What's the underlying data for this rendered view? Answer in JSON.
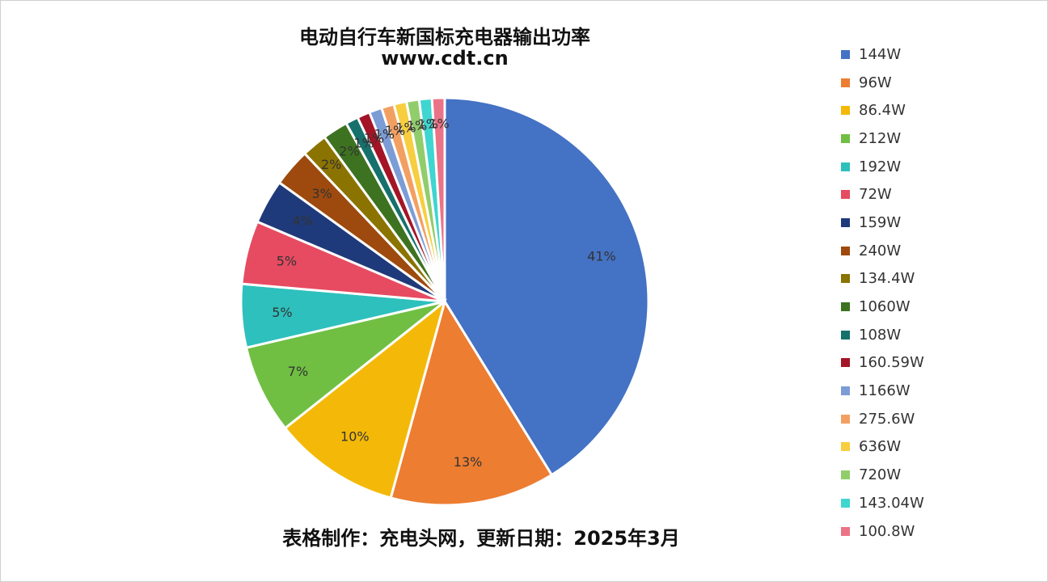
{
  "chart_data": {
    "type": "pie",
    "title": "电动自行车新国标充电器输出功率",
    "subtitle": "www.cdt.cn",
    "footer": "表格制作：充电头网，更新日期：2025年3月",
    "legend_position": "right",
    "slices": [
      {
        "name": "144W",
        "value": 41,
        "label": "41%",
        "color": "#4472C4"
      },
      {
        "name": "96W",
        "value": 13,
        "label": "13%",
        "color": "#ED7D31"
      },
      {
        "name": "86.4W",
        "value": 10,
        "label": "10%",
        "color": "#F4B908"
      },
      {
        "name": "212W",
        "value": 7,
        "label": "7%",
        "color": "#70BF43"
      },
      {
        "name": "192W",
        "value": 5,
        "label": "5%",
        "color": "#2EC0BD"
      },
      {
        "name": "72W",
        "value": 5,
        "label": "5%",
        "color": "#E64B62"
      },
      {
        "name": "159W",
        "value": 3.5,
        "label": "4%",
        "color": "#1F3A7A"
      },
      {
        "name": "240W",
        "value": 3,
        "label": "3%",
        "color": "#9E4A0E"
      },
      {
        "name": "134.4W",
        "value": 2,
        "label": "2%",
        "color": "#8B7300"
      },
      {
        "name": "1060W",
        "value": 2,
        "label": "2%",
        "color": "#3D7320"
      },
      {
        "name": "108W",
        "value": 1,
        "label": "1%",
        "color": "#16706C"
      },
      {
        "name": "160.59W",
        "value": 1,
        "label": "1%",
        "color": "#A31526"
      },
      {
        "name": "1166W",
        "value": 1,
        "label": "1%",
        "color": "#7C9CD6"
      },
      {
        "name": "275.6W",
        "value": 1,
        "label": "1%",
        "color": "#F2A062"
      },
      {
        "name": "636W",
        "value": 1,
        "label": "1%",
        "color": "#F6CE3F"
      },
      {
        "name": "720W",
        "value": 1,
        "label": "1%",
        "color": "#92CD6C"
      },
      {
        "name": "143.04W",
        "value": 1,
        "label": "1%",
        "color": "#3FD5D0"
      },
      {
        "name": "100.8W",
        "value": 1,
        "label": "1%",
        "color": "#EB7387"
      }
    ]
  }
}
